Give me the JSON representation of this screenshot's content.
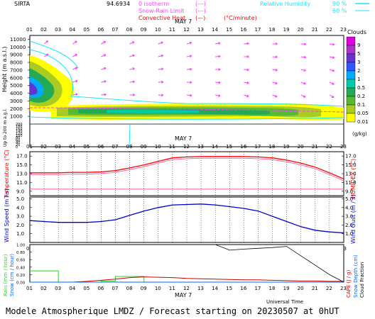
{
  "header": {
    "station": "SIRTA",
    "coords": "94.6934",
    "legend_left": [
      {
        "label": "0 isotherm",
        "sym": "(---)",
        "color": "#ff3cff"
      },
      {
        "label": "Snow-Rain Limit",
        "sym": "(---)",
        "color": "#ff3cff"
      },
      {
        "label": "Convective Heat",
        "sym": "(—)",
        "unit": "(°C/minute)",
        "color": "#ff0000"
      }
    ],
    "legend_right": {
      "label": "Relative Humidity",
      "v1": "90 %",
      "v2": "60 %",
      "color": "#19e6ff"
    }
  },
  "colors": {
    "humidity": "#19e6ff",
    "magenta": "#ff3cff",
    "temperature": "#ff0000",
    "humidex": "#ff66aa",
    "wind": "#0000cc",
    "rain": "#33cc33",
    "snow": "#0066ff",
    "cloud_cover": "#000000",
    "cape": "#cc0000"
  },
  "time_axis": {
    "hours": [
      "01",
      "02",
      "03",
      "04",
      "05",
      "06",
      "07",
      "08",
      "09",
      "10",
      "11",
      "12",
      "13",
      "14",
      "15",
      "16",
      "17",
      "18",
      "19",
      "20",
      "21",
      "22",
      "23"
    ],
    "date_label": "MAY  7",
    "xlabel": "Universal Time"
  },
  "cloud_panel": {
    "ylabel": "Height  (m a.s.l.)",
    "ylabel2": "Up to 200 m a.g.l.",
    "yticks": [
      "11000",
      "10000",
      "9000",
      "8000",
      "7000",
      "6000",
      "5000",
      "4000",
      "3000",
      "2000",
      "1000"
    ],
    "yticks_low": [
      "200",
      "180",
      "160",
      "140",
      "120",
      "100",
      "80",
      "60",
      "40",
      "20",
      "0"
    ],
    "scale_title": "Clouds",
    "scale": [
      "9",
      "5",
      "3",
      "2",
      "1",
      "0.5",
      "0.2",
      "0.1",
      "0.05",
      "0.01"
    ],
    "scale_colors": [
      "#dd00dd",
      "#aa33cc",
      "#6633cc",
      "#3355ff",
      "#00aaff",
      "#00ccaa",
      "#22aa55",
      "#55bb33",
      "#aacc22",
      "#ffff00"
    ],
    "scale_unit": "(g/kg)"
  },
  "temp_panel": {
    "ylabel": "Temperature (°C)",
    "ylabel_right": "HUMIDEX (°C)",
    "yticks": [
      "17.0",
      "15.0",
      "13.0",
      "11.0",
      "9.0"
    ]
  },
  "wind_panel": {
    "ylabel": "Wind Speed (m / s)",
    "ylabel_right": "Wind Gust (m / s)",
    "yticks": [
      "5.0",
      "4.0",
      "3.0",
      "2.0",
      "1.0"
    ]
  },
  "rain_panel": {
    "ylabel": "Rain (mm / hour)",
    "ylabel2": "Snow (cm / hour)",
    "ylabel_right": "CAPE (J / g)",
    "ylabel_right2": "Snow Depth (cm)",
    "ylabel_right3": "Cloud Fraction",
    "yticks": [
      "1.00",
      "0.80",
      "0.60",
      "0.40",
      "0.20",
      "0.00"
    ]
  },
  "chart_data": [
    {
      "type": "line",
      "title": "Temperature",
      "x": [
        1,
        2,
        3,
        4,
        5,
        6,
        7,
        8,
        9,
        10,
        11,
        12,
        13,
        14,
        15,
        16,
        17,
        18,
        19,
        20,
        21,
        22,
        23
      ],
      "ylim": [
        8,
        18
      ],
      "series": [
        {
          "name": "Temperature",
          "values": [
            13.2,
            13.2,
            13.2,
            13.3,
            13.3,
            13.4,
            13.7,
            14.3,
            15.0,
            15.8,
            16.6,
            16.8,
            16.9,
            16.9,
            16.9,
            16.9,
            16.8,
            16.6,
            16.1,
            15.4,
            14.5,
            13.2,
            11.8
          ]
        },
        {
          "name": "HUMIDEX",
          "values": [
            12.8,
            12.8,
            12.8,
            12.9,
            12.9,
            13.0,
            13.3,
            13.9,
            14.6,
            15.4,
            16.2,
            16.4,
            16.5,
            16.5,
            16.5,
            16.5,
            16.4,
            16.2,
            15.7,
            15.0,
            14.1,
            12.8,
            11.4
          ]
        },
        {
          "name": "",
          "values": [
            9.5,
            9.5,
            9.5,
            9.5,
            9.5,
            9.5,
            9.5,
            9.5,
            9.5,
            9.5,
            9.5,
            9.5,
            9.5,
            9.5,
            9.5,
            9.5,
            9.5,
            9.5,
            9.5,
            9.5,
            9.5,
            9.5,
            9.5
          ]
        }
      ]
    },
    {
      "type": "line",
      "title": "Wind Speed",
      "x": [
        1,
        2,
        3,
        4,
        5,
        6,
        7,
        8,
        9,
        10,
        11,
        12,
        13,
        14,
        15,
        16,
        17,
        18,
        19,
        20,
        21,
        22,
        23
      ],
      "ylim": [
        0,
        5.2
      ],
      "series": [
        {
          "name": "Wind Speed",
          "values": [
            2.5,
            2.4,
            2.3,
            2.3,
            2.3,
            2.4,
            2.6,
            3.1,
            3.6,
            4.0,
            4.3,
            4.35,
            4.4,
            4.3,
            4.1,
            3.9,
            3.6,
            3.0,
            2.4,
            1.8,
            1.4,
            1.2,
            1.1
          ]
        }
      ]
    },
    {
      "type": "line",
      "title": "Rain",
      "x": [
        1,
        2,
        3,
        4,
        5,
        6,
        7,
        8,
        9,
        10,
        11,
        12,
        13,
        14,
        15,
        16,
        17,
        18,
        19,
        20,
        21,
        22,
        23
      ],
      "ylim": [
        0,
        1.0
      ],
      "series": [
        {
          "name": "Rain",
          "values": [
            0.3,
            0.3,
            0.0,
            0.0,
            0.0,
            0.03,
            0.15,
            0.15,
            0.0,
            0.0,
            0.0,
            0.0,
            0.0,
            0.0,
            0.0,
            0.0,
            0.0,
            0.0,
            0.0,
            0.0,
            0.0,
            0.0,
            0.0
          ]
        },
        {
          "name": "CAPE",
          "values": [
            0.0,
            0.0,
            0.0,
            0.0,
            0.02,
            0.05,
            0.08,
            0.12,
            0.14,
            0.13,
            0.12,
            0.1,
            0.09,
            0.08,
            0.07,
            0.06,
            0.06,
            0.05,
            0.04,
            0.03,
            0.03,
            0.02,
            0.02
          ]
        },
        {
          "name": "Cloud Fraction",
          "values": [
            1.0,
            1.0,
            1.0,
            1.0,
            1.0,
            1.0,
            1.0,
            1.0,
            1.0,
            1.0,
            1.0,
            1.0,
            1.0,
            1.0,
            0.85,
            0.88,
            0.9,
            0.92,
            0.95,
            0.7,
            0.45,
            0.2,
            0.0
          ]
        }
      ]
    }
  ],
  "footer": "Modele Atmospherique LMDZ / Forecast starting on 20230507 at 0hUT"
}
